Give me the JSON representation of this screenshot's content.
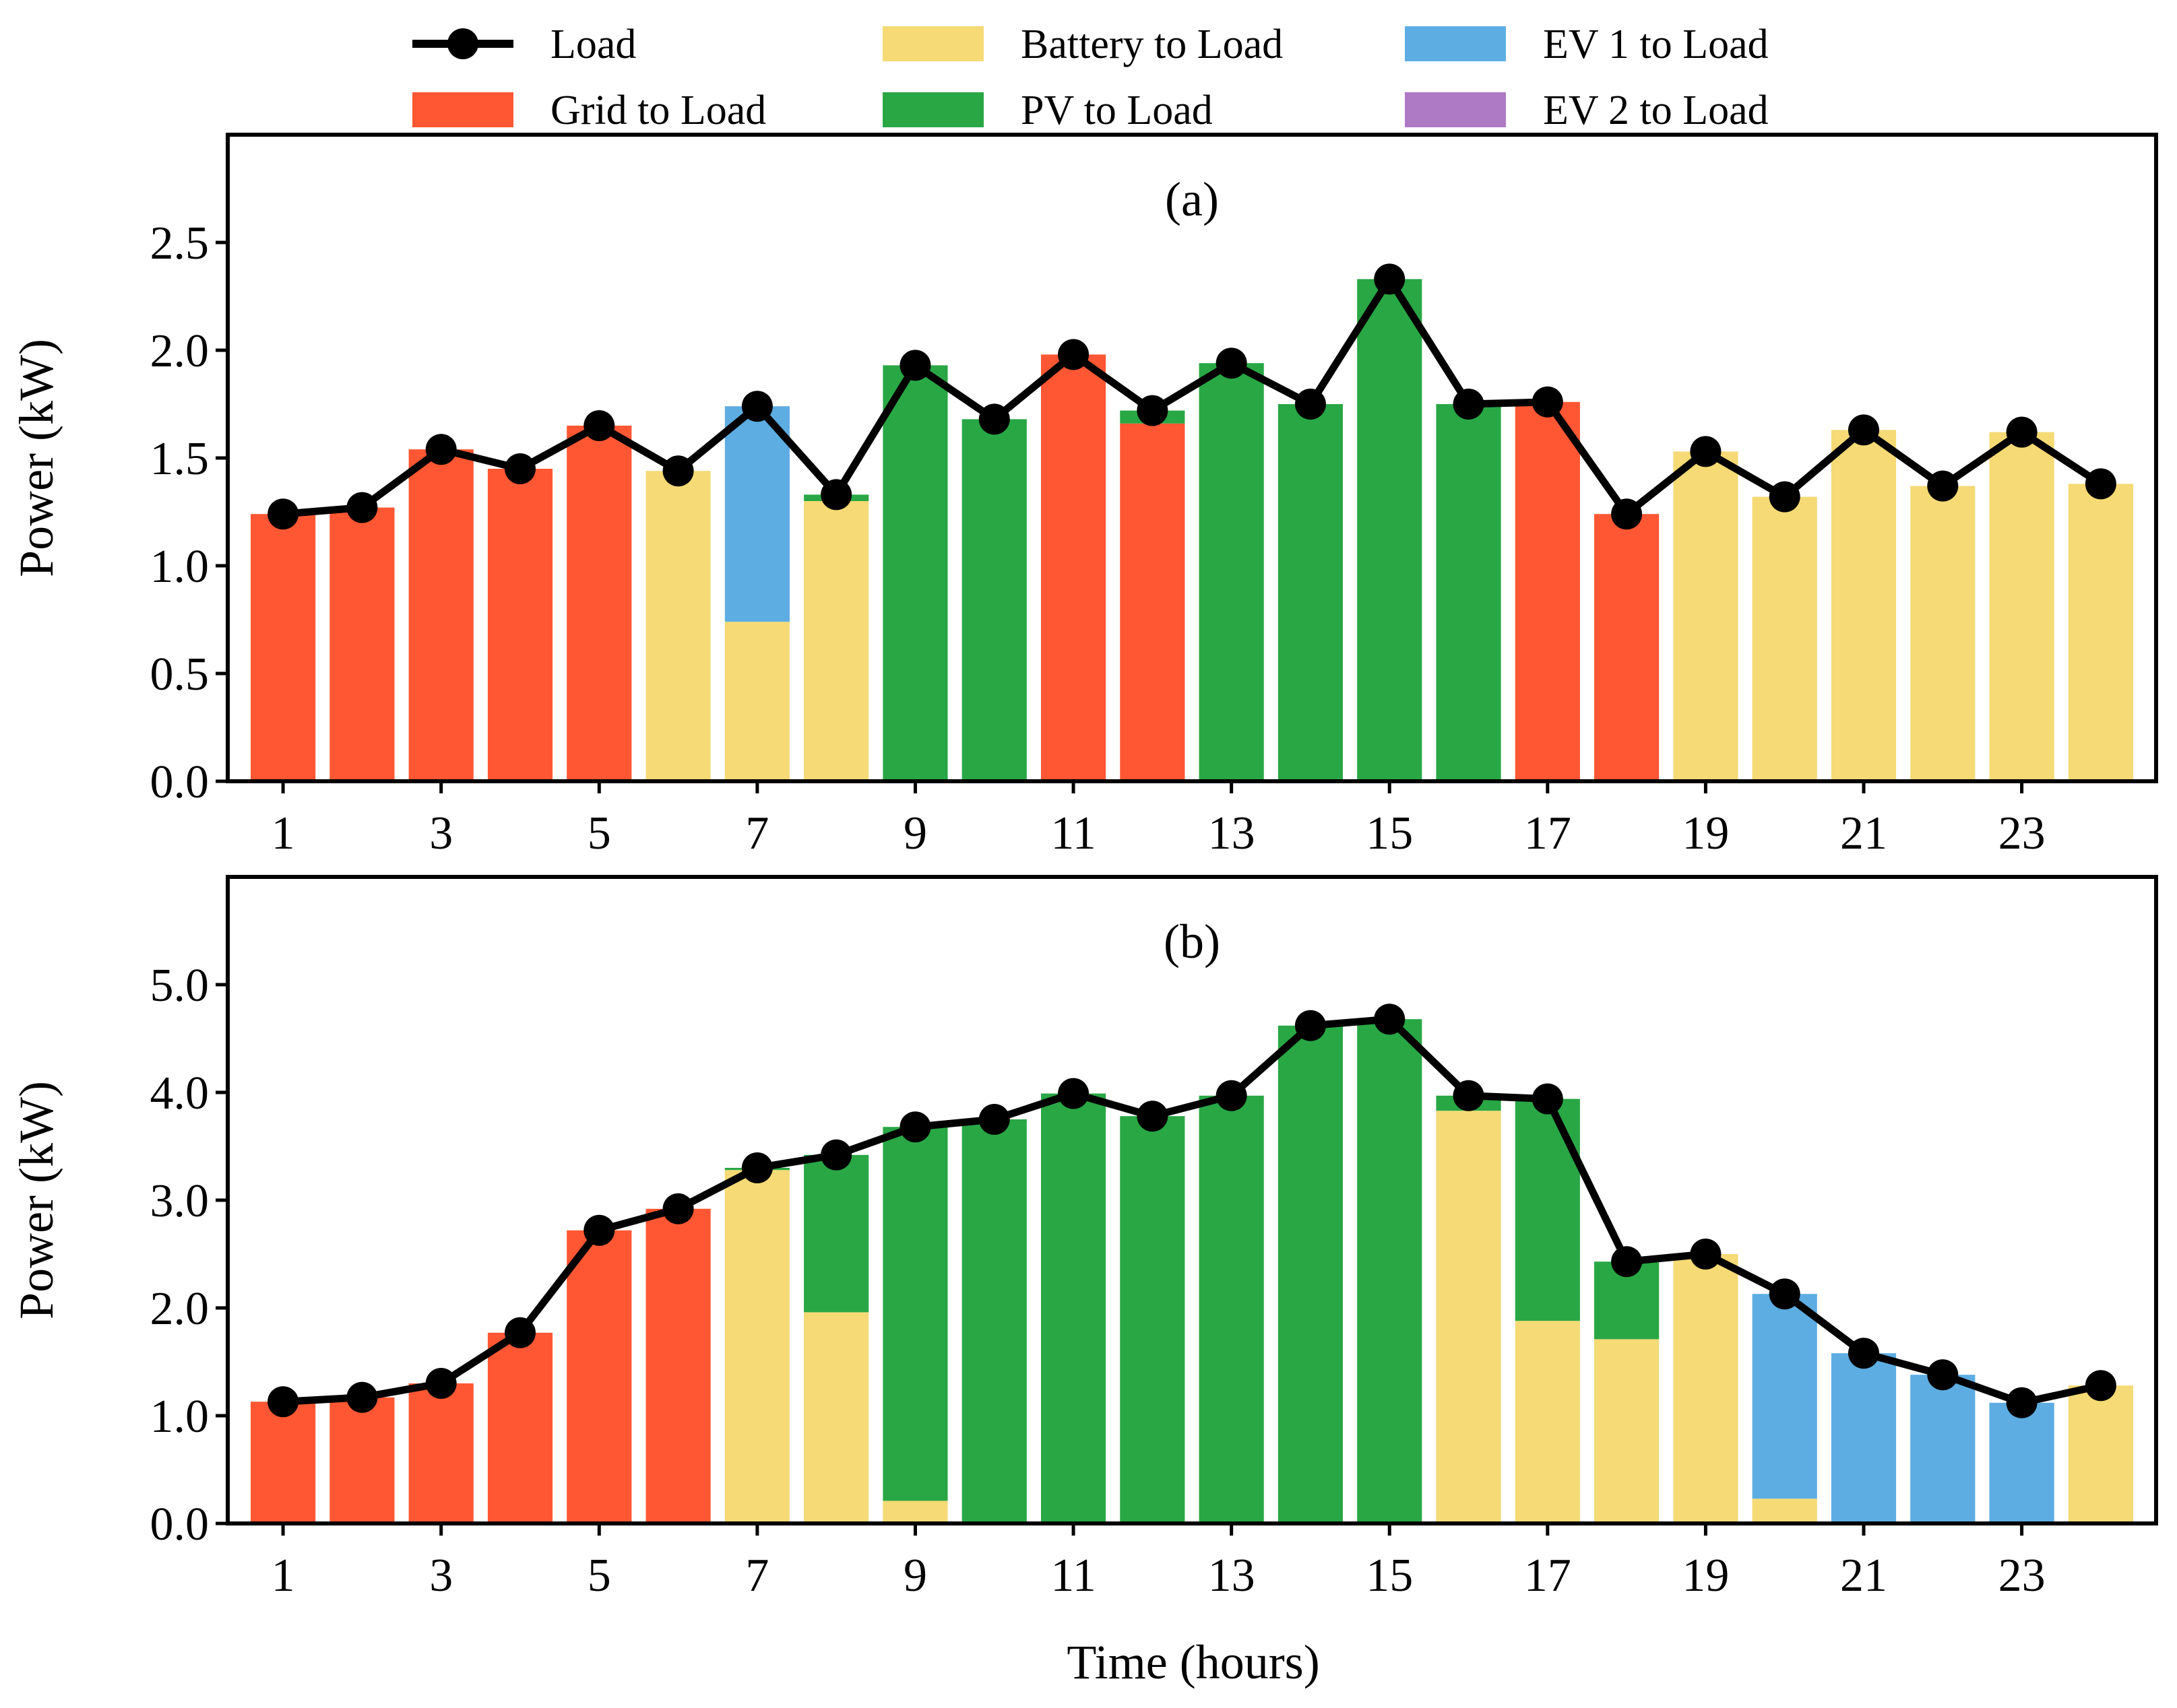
{
  "legend": [
    {
      "key": "load",
      "label": "Load",
      "kind": "line",
      "color": "#000000"
    },
    {
      "key": "grid",
      "label": "Grid to Load",
      "kind": "patch",
      "color": "#FF5733"
    },
    {
      "key": "battery",
      "label": "Battery to Load",
      "kind": "patch",
      "color": "#F5DA75"
    },
    {
      "key": "pv",
      "label": "PV to Load",
      "kind": "patch",
      "color": "#29A745"
    },
    {
      "key": "ev1",
      "label": "EV 1 to Load",
      "kind": "patch",
      "color": "#5DADE2"
    },
    {
      "key": "ev2",
      "label": "EV 2 to Load",
      "kind": "patch",
      "color": "#AF7AC5"
    }
  ],
  "xlabel": "Time (hours)",
  "chart_data": [
    {
      "type": "bar",
      "stacked": true,
      "title": "(a)",
      "ylabel": "Power (kW)",
      "ylim": [
        0,
        3.0
      ],
      "yticks": [
        0.0,
        0.5,
        1.0,
        1.5,
        2.0,
        2.5
      ],
      "ytick_labels": [
        "0.0",
        "0.5",
        "1.0",
        "1.5",
        "2.0",
        "2.5"
      ],
      "x": [
        1,
        2,
        3,
        4,
        5,
        6,
        7,
        8,
        9,
        10,
        11,
        12,
        13,
        14,
        15,
        16,
        17,
        18,
        19,
        20,
        21,
        22,
        23,
        24
      ],
      "xticks": [
        1,
        3,
        5,
        7,
        9,
        11,
        13,
        15,
        17,
        19,
        21,
        23
      ],
      "xtick_labels": [
        "1",
        "3",
        "5",
        "7",
        "9",
        "11",
        "13",
        "15",
        "17",
        "19",
        "21",
        "23"
      ],
      "series": [
        {
          "key": "grid",
          "name": "Grid to Load",
          "values": [
            1.24,
            1.27,
            1.54,
            1.45,
            1.65,
            0,
            0,
            0,
            0,
            0,
            1.98,
            1.66,
            0,
            0,
            0,
            0,
            1.76,
            1.24,
            0,
            0,
            0,
            0,
            0,
            0
          ]
        },
        {
          "key": "battery",
          "name": "Battery to Load",
          "values": [
            0,
            0,
            0,
            0,
            0,
            1.44,
            0.74,
            1.3,
            0,
            0,
            0,
            0,
            0,
            0,
            0,
            0,
            0,
            0,
            1.53,
            1.32,
            1.63,
            1.37,
            1.62,
            1.38
          ]
        },
        {
          "key": "pv",
          "name": "PV to Load",
          "values": [
            0,
            0,
            0,
            0,
            0,
            0,
            0,
            0.03,
            1.93,
            1.68,
            0,
            0.06,
            1.94,
            1.75,
            2.33,
            1.75,
            0,
            0,
            0,
            0,
            0,
            0,
            0,
            0
          ]
        },
        {
          "key": "ev1",
          "name": "EV 1 to Load",
          "values": [
            0,
            0,
            0,
            0,
            0,
            0,
            1.0,
            0,
            0,
            0,
            0,
            0,
            0,
            0,
            0,
            0,
            0,
            0,
            0,
            0,
            0,
            0,
            0,
            0
          ]
        },
        {
          "key": "ev2",
          "name": "EV 2 to Load",
          "values": [
            0,
            0,
            0,
            0,
            0,
            0,
            0,
            0,
            0,
            0,
            0,
            0,
            0,
            0,
            0,
            0,
            0,
            0,
            0,
            0,
            0,
            0,
            0,
            0
          ]
        }
      ],
      "load": [
        1.24,
        1.27,
        1.54,
        1.45,
        1.65,
        1.44,
        1.74,
        1.33,
        1.93,
        1.68,
        1.98,
        1.72,
        1.94,
        1.75,
        2.33,
        1.75,
        1.76,
        1.24,
        1.53,
        1.32,
        1.63,
        1.37,
        1.62,
        1.38
      ]
    },
    {
      "type": "bar",
      "stacked": true,
      "title": "(b)",
      "ylabel": "Power (kW)",
      "ylim": [
        0,
        6.0
      ],
      "yticks": [
        0.0,
        1.0,
        2.0,
        3.0,
        4.0,
        5.0
      ],
      "ytick_labels": [
        "0.0",
        "1.0",
        "2.0",
        "3.0",
        "4.0",
        "5.0"
      ],
      "x": [
        1,
        2,
        3,
        4,
        5,
        6,
        7,
        8,
        9,
        10,
        11,
        12,
        13,
        14,
        15,
        16,
        17,
        18,
        19,
        20,
        21,
        22,
        23,
        24
      ],
      "xticks": [
        1,
        3,
        5,
        7,
        9,
        11,
        13,
        15,
        17,
        19,
        21,
        23
      ],
      "xtick_labels": [
        "1",
        "3",
        "5",
        "7",
        "9",
        "11",
        "13",
        "15",
        "17",
        "19",
        "21",
        "23"
      ],
      "series": [
        {
          "key": "grid",
          "name": "Grid to Load",
          "values": [
            1.13,
            1.17,
            1.3,
            1.77,
            2.72,
            2.92,
            0,
            0,
            0,
            0,
            0,
            0,
            0,
            0,
            0,
            0,
            0,
            0,
            0,
            0,
            0,
            0,
            0,
            0
          ]
        },
        {
          "key": "battery",
          "name": "Battery to Load",
          "values": [
            0,
            0,
            0,
            0,
            0,
            0,
            3.28,
            1.96,
            0.21,
            0,
            0,
            0,
            0,
            0,
            0,
            3.83,
            1.88,
            1.71,
            2.5,
            0.23,
            0,
            0,
            0,
            1.28
          ]
        },
        {
          "key": "pv",
          "name": "PV to Load",
          "values": [
            0,
            0,
            0,
            0,
            0,
            0,
            0.02,
            1.46,
            3.47,
            3.75,
            3.99,
            3.78,
            3.97,
            4.62,
            4.68,
            0.14,
            2.06,
            0.72,
            0,
            0,
            0,
            0,
            0,
            0
          ]
        },
        {
          "key": "ev1",
          "name": "EV 1 to Load",
          "values": [
            0,
            0,
            0,
            0,
            0,
            0,
            0,
            0,
            0,
            0,
            0,
            0,
            0,
            0,
            0,
            0,
            0,
            0,
            0,
            1.9,
            1.58,
            1.38,
            1.12,
            0
          ]
        },
        {
          "key": "ev2",
          "name": "EV 2 to Load",
          "values": [
            0,
            0,
            0,
            0,
            0,
            0,
            0,
            0,
            0,
            0,
            0,
            0,
            0,
            0,
            0,
            0,
            0,
            0,
            0,
            0,
            0,
            0,
            0,
            0
          ]
        }
      ],
      "load": [
        1.13,
        1.17,
        1.3,
        1.77,
        2.72,
        2.92,
        3.3,
        3.42,
        3.68,
        3.75,
        3.99,
        3.78,
        3.97,
        4.62,
        4.68,
        3.97,
        3.94,
        2.43,
        2.5,
        2.13,
        1.58,
        1.38,
        1.12,
        1.28
      ]
    }
  ]
}
